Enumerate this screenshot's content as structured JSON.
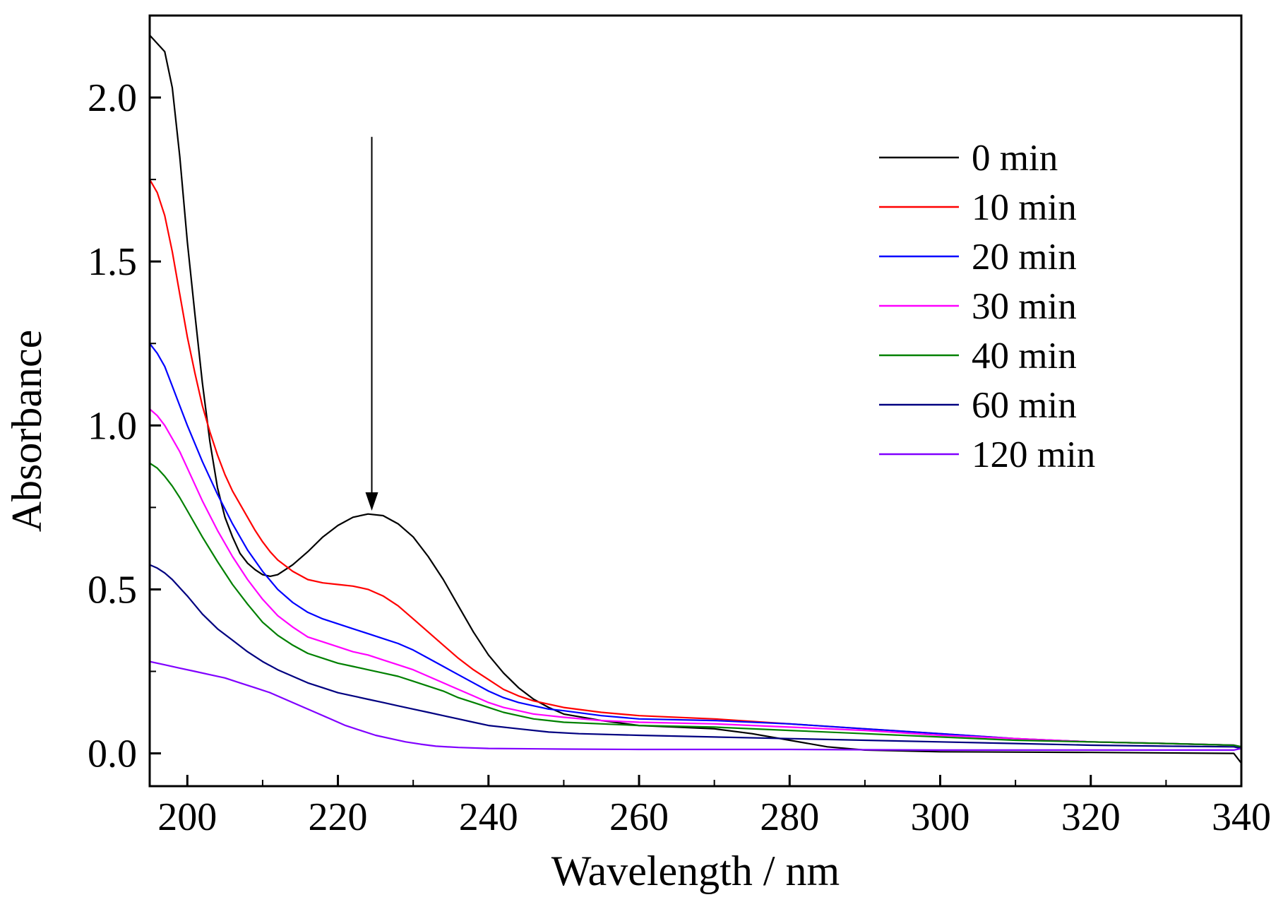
{
  "chart_data": {
    "type": "line",
    "title": "",
    "xlabel": "Wavelength / nm",
    "ylabel": "Absorbance",
    "xlim": [
      195,
      340
    ],
    "ylim": [
      -0.1,
      2.25
    ],
    "xticks": [
      200,
      220,
      240,
      260,
      280,
      300,
      320,
      340
    ],
    "yticks": [
      0.0,
      0.5,
      1.0,
      1.5,
      2.0
    ],
    "ytick_labels": [
      "0.0",
      "0.5",
      "1.0",
      "1.5",
      "2.0"
    ],
    "grid": false,
    "legend_position": "top-right",
    "annotation": {
      "type": "arrow",
      "direction": "down",
      "x": 224.5,
      "y_from": 1.88,
      "y_to": 0.74
    },
    "series": [
      {
        "name": "0 min",
        "color": "#000000",
        "points": [
          [
            195,
            2.19
          ],
          [
            197,
            2.14
          ],
          [
            198,
            2.03
          ],
          [
            199,
            1.82
          ],
          [
            200,
            1.56
          ],
          [
            201,
            1.34
          ],
          [
            202,
            1.13
          ],
          [
            203,
            0.95
          ],
          [
            204,
            0.81
          ],
          [
            205,
            0.72
          ],
          [
            206,
            0.66
          ],
          [
            207,
            0.61
          ],
          [
            208,
            0.58
          ],
          [
            209,
            0.56
          ],
          [
            210,
            0.545
          ],
          [
            211,
            0.54
          ],
          [
            212,
            0.545
          ],
          [
            214,
            0.575
          ],
          [
            216,
            0.615
          ],
          [
            218,
            0.66
          ],
          [
            220,
            0.695
          ],
          [
            222,
            0.72
          ],
          [
            224,
            0.73
          ],
          [
            226,
            0.725
          ],
          [
            228,
            0.7
          ],
          [
            230,
            0.66
          ],
          [
            232,
            0.6
          ],
          [
            234,
            0.53
          ],
          [
            236,
            0.45
          ],
          [
            238,
            0.37
          ],
          [
            240,
            0.3
          ],
          [
            242,
            0.245
          ],
          [
            244,
            0.2
          ],
          [
            246,
            0.165
          ],
          [
            248,
            0.14
          ],
          [
            250,
            0.12
          ],
          [
            255,
            0.1
          ],
          [
            260,
            0.085
          ],
          [
            265,
            0.08
          ],
          [
            270,
            0.075
          ],
          [
            275,
            0.06
          ],
          [
            280,
            0.04
          ],
          [
            285,
            0.02
          ],
          [
            290,
            0.01
          ],
          [
            300,
            0.005
          ],
          [
            320,
            0.003
          ],
          [
            339,
            0.0
          ],
          [
            340,
            -0.03
          ]
        ]
      },
      {
        "name": "10 min",
        "color": "#ff0000",
        "points": [
          [
            195,
            1.75
          ],
          [
            196,
            1.71
          ],
          [
            197,
            1.64
          ],
          [
            198,
            1.53
          ],
          [
            199,
            1.4
          ],
          [
            200,
            1.27
          ],
          [
            201,
            1.16
          ],
          [
            202,
            1.06
          ],
          [
            203,
            0.98
          ],
          [
            204,
            0.91
          ],
          [
            205,
            0.85
          ],
          [
            206,
            0.8
          ],
          [
            207,
            0.76
          ],
          [
            208,
            0.72
          ],
          [
            209,
            0.68
          ],
          [
            210,
            0.645
          ],
          [
            211,
            0.615
          ],
          [
            212,
            0.59
          ],
          [
            214,
            0.555
          ],
          [
            216,
            0.53
          ],
          [
            218,
            0.52
          ],
          [
            220,
            0.515
          ],
          [
            222,
            0.51
          ],
          [
            224,
            0.5
          ],
          [
            226,
            0.48
          ],
          [
            228,
            0.45
          ],
          [
            230,
            0.41
          ],
          [
            232,
            0.37
          ],
          [
            234,
            0.33
          ],
          [
            236,
            0.29
          ],
          [
            238,
            0.255
          ],
          [
            240,
            0.225
          ],
          [
            242,
            0.195
          ],
          [
            244,
            0.175
          ],
          [
            246,
            0.16
          ],
          [
            248,
            0.15
          ],
          [
            250,
            0.14
          ],
          [
            255,
            0.125
          ],
          [
            260,
            0.115
          ],
          [
            270,
            0.105
          ],
          [
            280,
            0.09
          ],
          [
            290,
            0.075
          ],
          [
            300,
            0.06
          ],
          [
            310,
            0.045
          ],
          [
            320,
            0.035
          ],
          [
            330,
            0.03
          ],
          [
            339,
            0.025
          ],
          [
            340,
            0.015
          ]
        ]
      },
      {
        "name": "20 min",
        "color": "#0000ff",
        "points": [
          [
            195,
            1.25
          ],
          [
            196,
            1.22
          ],
          [
            197,
            1.18
          ],
          [
            198,
            1.12
          ],
          [
            199,
            1.06
          ],
          [
            200,
            1.0
          ],
          [
            202,
            0.89
          ],
          [
            204,
            0.79
          ],
          [
            206,
            0.7
          ],
          [
            208,
            0.62
          ],
          [
            210,
            0.555
          ],
          [
            212,
            0.5
          ],
          [
            214,
            0.46
          ],
          [
            216,
            0.43
          ],
          [
            218,
            0.41
          ],
          [
            220,
            0.395
          ],
          [
            222,
            0.38
          ],
          [
            224,
            0.365
          ],
          [
            226,
            0.35
          ],
          [
            228,
            0.335
          ],
          [
            230,
            0.315
          ],
          [
            232,
            0.29
          ],
          [
            234,
            0.265
          ],
          [
            236,
            0.24
          ],
          [
            238,
            0.215
          ],
          [
            240,
            0.19
          ],
          [
            242,
            0.17
          ],
          [
            244,
            0.155
          ],
          [
            246,
            0.145
          ],
          [
            248,
            0.135
          ],
          [
            250,
            0.13
          ],
          [
            255,
            0.115
          ],
          [
            260,
            0.105
          ],
          [
            270,
            0.1
          ],
          [
            280,
            0.09
          ],
          [
            290,
            0.075
          ],
          [
            300,
            0.06
          ],
          [
            310,
            0.045
          ],
          [
            320,
            0.035
          ],
          [
            330,
            0.03
          ],
          [
            339,
            0.025
          ],
          [
            340,
            0.02
          ]
        ]
      },
      {
        "name": "30 min",
        "color": "#ff00ff",
        "points": [
          [
            195,
            1.05
          ],
          [
            196,
            1.03
          ],
          [
            197,
            1.0
          ],
          [
            198,
            0.96
          ],
          [
            199,
            0.92
          ],
          [
            200,
            0.87
          ],
          [
            202,
            0.77
          ],
          [
            204,
            0.68
          ],
          [
            206,
            0.6
          ],
          [
            208,
            0.53
          ],
          [
            210,
            0.47
          ],
          [
            212,
            0.42
          ],
          [
            214,
            0.385
          ],
          [
            216,
            0.355
          ],
          [
            218,
            0.34
          ],
          [
            220,
            0.325
          ],
          [
            222,
            0.31
          ],
          [
            224,
            0.3
          ],
          [
            226,
            0.285
          ],
          [
            228,
            0.27
          ],
          [
            230,
            0.255
          ],
          [
            232,
            0.235
          ],
          [
            234,
            0.215
          ],
          [
            236,
            0.195
          ],
          [
            238,
            0.175
          ],
          [
            240,
            0.155
          ],
          [
            242,
            0.14
          ],
          [
            244,
            0.13
          ],
          [
            246,
            0.12
          ],
          [
            248,
            0.115
          ],
          [
            250,
            0.11
          ],
          [
            255,
            0.1
          ],
          [
            260,
            0.095
          ],
          [
            270,
            0.09
          ],
          [
            280,
            0.08
          ],
          [
            290,
            0.07
          ],
          [
            300,
            0.055
          ],
          [
            310,
            0.045
          ],
          [
            320,
            0.035
          ],
          [
            330,
            0.03
          ],
          [
            339,
            0.025
          ],
          [
            340,
            0.02
          ]
        ]
      },
      {
        "name": "40 min",
        "color": "#008000",
        "points": [
          [
            195,
            0.885
          ],
          [
            196,
            0.87
          ],
          [
            197,
            0.845
          ],
          [
            198,
            0.815
          ],
          [
            199,
            0.78
          ],
          [
            200,
            0.74
          ],
          [
            202,
            0.66
          ],
          [
            204,
            0.585
          ],
          [
            206,
            0.515
          ],
          [
            208,
            0.455
          ],
          [
            210,
            0.4
          ],
          [
            212,
            0.36
          ],
          [
            214,
            0.33
          ],
          [
            216,
            0.305
          ],
          [
            218,
            0.29
          ],
          [
            220,
            0.275
          ],
          [
            222,
            0.265
          ],
          [
            224,
            0.255
          ],
          [
            226,
            0.245
          ],
          [
            228,
            0.235
          ],
          [
            230,
            0.22
          ],
          [
            232,
            0.205
          ],
          [
            234,
            0.19
          ],
          [
            236,
            0.17
          ],
          [
            238,
            0.155
          ],
          [
            240,
            0.14
          ],
          [
            242,
            0.125
          ],
          [
            244,
            0.115
          ],
          [
            246,
            0.105
          ],
          [
            248,
            0.1
          ],
          [
            250,
            0.095
          ],
          [
            260,
            0.085
          ],
          [
            270,
            0.08
          ],
          [
            280,
            0.07
          ],
          [
            290,
            0.06
          ],
          [
            300,
            0.05
          ],
          [
            310,
            0.04
          ],
          [
            320,
            0.035
          ],
          [
            330,
            0.03
          ],
          [
            339,
            0.025
          ],
          [
            340,
            0.02
          ]
        ]
      },
      {
        "name": "60 min",
        "color": "#000080",
        "points": [
          [
            195,
            0.575
          ],
          [
            196,
            0.565
          ],
          [
            197,
            0.55
          ],
          [
            198,
            0.53
          ],
          [
            199,
            0.505
          ],
          [
            200,
            0.48
          ],
          [
            202,
            0.425
          ],
          [
            204,
            0.38
          ],
          [
            206,
            0.345
          ],
          [
            208,
            0.31
          ],
          [
            210,
            0.28
          ],
          [
            212,
            0.255
          ],
          [
            214,
            0.235
          ],
          [
            216,
            0.215
          ],
          [
            218,
            0.2
          ],
          [
            220,
            0.185
          ],
          [
            222,
            0.175
          ],
          [
            224,
            0.165
          ],
          [
            226,
            0.155
          ],
          [
            228,
            0.145
          ],
          [
            230,
            0.135
          ],
          [
            232,
            0.125
          ],
          [
            234,
            0.115
          ],
          [
            236,
            0.105
          ],
          [
            238,
            0.095
          ],
          [
            240,
            0.085
          ],
          [
            244,
            0.075
          ],
          [
            248,
            0.065
          ],
          [
            252,
            0.06
          ],
          [
            260,
            0.055
          ],
          [
            270,
            0.05
          ],
          [
            280,
            0.045
          ],
          [
            290,
            0.04
          ],
          [
            300,
            0.035
          ],
          [
            310,
            0.03
          ],
          [
            320,
            0.025
          ],
          [
            330,
            0.022
          ],
          [
            339,
            0.02
          ],
          [
            340,
            0.015
          ]
        ]
      },
      {
        "name": "120 min",
        "color": "#8000ff",
        "points": [
          [
            195,
            0.28
          ],
          [
            197,
            0.27
          ],
          [
            199,
            0.26
          ],
          [
            201,
            0.25
          ],
          [
            203,
            0.24
          ],
          [
            205,
            0.23
          ],
          [
            207,
            0.215
          ],
          [
            209,
            0.2
          ],
          [
            211,
            0.185
          ],
          [
            213,
            0.165
          ],
          [
            215,
            0.145
          ],
          [
            217,
            0.125
          ],
          [
            219,
            0.105
          ],
          [
            221,
            0.085
          ],
          [
            223,
            0.07
          ],
          [
            225,
            0.055
          ],
          [
            227,
            0.045
          ],
          [
            229,
            0.035
          ],
          [
            231,
            0.028
          ],
          [
            233,
            0.022
          ],
          [
            236,
            0.018
          ],
          [
            240,
            0.015
          ],
          [
            250,
            0.013
          ],
          [
            260,
            0.012
          ],
          [
            280,
            0.012
          ],
          [
            300,
            0.01
          ],
          [
            320,
            0.01
          ],
          [
            339,
            0.01
          ],
          [
            340,
            0.015
          ]
        ]
      }
    ]
  }
}
